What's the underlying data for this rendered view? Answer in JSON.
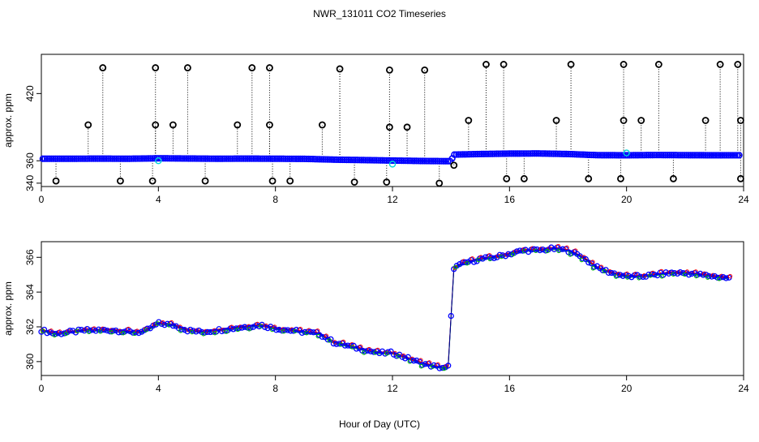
{
  "figure": {
    "title": "NWR_131011  CO2 Timeseries",
    "xlabel": "Hour of Day (UTC)"
  },
  "chart_data": [
    {
      "type": "scatter",
      "title": "",
      "xlabel": "",
      "ylabel": "approx. ppm",
      "xlim": [
        0,
        24
      ],
      "ylim": [
        337,
        455
      ],
      "xticks": [
        0,
        4,
        8,
        12,
        16,
        20,
        24
      ],
      "yticks": [
        340,
        360,
        420
      ],
      "colors": {
        "baseline": "#0000ff",
        "spike": "#000000",
        "flag": "#00d8d8",
        "line": "#000000"
      },
      "baseline": {
        "x": [
          0,
          1,
          2,
          3,
          4,
          5,
          6,
          7,
          8,
          9,
          10,
          11,
          12,
          13,
          14,
          14.1,
          15,
          16,
          17,
          18,
          19,
          20,
          21,
          22,
          23,
          23.8
        ],
        "y": [
          361.8,
          361.8,
          361.9,
          361.8,
          362.2,
          362.0,
          361.8,
          361.9,
          361.8,
          361.7,
          361.0,
          360.6,
          360.2,
          359.8,
          359.6,
          365.5,
          366.0,
          366.4,
          366.5,
          366.0,
          365.0,
          364.9,
          365.1,
          365.0,
          364.9,
          364.9
        ]
      },
      "spikes": [
        {
          "x": 0.5,
          "y": 342
        },
        {
          "x": 1.6,
          "y": 392
        },
        {
          "x": 2.1,
          "y": 443
        },
        {
          "x": 2.7,
          "y": 342
        },
        {
          "x": 3.8,
          "y": 342
        },
        {
          "x": 3.9,
          "y": 443
        },
        {
          "x": 3.9,
          "y": 392
        },
        {
          "x": 4.5,
          "y": 392
        },
        {
          "x": 5.0,
          "y": 443
        },
        {
          "x": 5.6,
          "y": 342
        },
        {
          "x": 6.7,
          "y": 392
        },
        {
          "x": 7.2,
          "y": 443
        },
        {
          "x": 7.8,
          "y": 443
        },
        {
          "x": 7.8,
          "y": 392
        },
        {
          "x": 7.9,
          "y": 342
        },
        {
          "x": 8.5,
          "y": 342
        },
        {
          "x": 9.6,
          "y": 392
        },
        {
          "x": 10.2,
          "y": 442
        },
        {
          "x": 10.7,
          "y": 341
        },
        {
          "x": 11.8,
          "y": 341
        },
        {
          "x": 11.9,
          "y": 390
        },
        {
          "x": 11.9,
          "y": 441
        },
        {
          "x": 12.5,
          "y": 390
        },
        {
          "x": 13.1,
          "y": 441
        },
        {
          "x": 13.6,
          "y": 340
        },
        {
          "x": 14.1,
          "y": 356
        },
        {
          "x": 14.6,
          "y": 396
        },
        {
          "x": 15.2,
          "y": 446
        },
        {
          "x": 15.8,
          "y": 446
        },
        {
          "x": 15.9,
          "y": 344
        },
        {
          "x": 16.5,
          "y": 344
        },
        {
          "x": 17.6,
          "y": 396
        },
        {
          "x": 18.1,
          "y": 446
        },
        {
          "x": 18.7,
          "y": 344
        },
        {
          "x": 19.8,
          "y": 344
        },
        {
          "x": 19.9,
          "y": 396
        },
        {
          "x": 19.9,
          "y": 446
        },
        {
          "x": 20.5,
          "y": 396
        },
        {
          "x": 21.1,
          "y": 446
        },
        {
          "x": 21.6,
          "y": 344
        },
        {
          "x": 22.7,
          "y": 396
        },
        {
          "x": 23.2,
          "y": 446
        },
        {
          "x": 23.8,
          "y": 446
        },
        {
          "x": 23.9,
          "y": 396
        },
        {
          "x": 23.9,
          "y": 344
        }
      ],
      "flags": [
        {
          "x": 4.0,
          "y": 360
        },
        {
          "x": 12.0,
          "y": 357
        },
        {
          "x": 20.0,
          "y": 367
        }
      ]
    },
    {
      "type": "scatter",
      "title": "",
      "xlabel": "",
      "ylabel": "approx. ppm",
      "xlim": [
        0,
        24
      ],
      "ylim": [
        359.2,
        366.9
      ],
      "xticks": [
        0,
        4,
        8,
        12,
        16,
        20,
        24
      ],
      "yticks": [
        360,
        362,
        364,
        366
      ],
      "series_names": [
        "red",
        "green",
        "blue",
        "navy"
      ],
      "colors": [
        "#ff0000",
        "#00c000",
        "#0000ff",
        "#000080"
      ],
      "x": [
        0,
        0.5,
        1,
        1.5,
        2,
        2.5,
        3,
        3.5,
        4,
        4.5,
        5,
        5.5,
        6,
        6.5,
        7,
        7.5,
        8,
        8.5,
        9,
        9.5,
        10,
        10.5,
        11,
        11.5,
        12,
        12.5,
        13,
        13.5,
        13.9,
        14.1,
        14.5,
        15,
        15.5,
        16,
        16.5,
        17,
        17.5,
        18,
        18.5,
        19,
        19.5,
        20,
        20.5,
        21,
        21.5,
        22,
        22.5,
        23,
        23.5
      ],
      "y": [
        361.8,
        361.6,
        361.7,
        361.8,
        361.8,
        361.8,
        361.7,
        361.7,
        362.2,
        362.1,
        361.8,
        361.7,
        361.8,
        361.9,
        362.0,
        362.1,
        361.9,
        361.8,
        361.7,
        361.6,
        361.1,
        360.9,
        360.7,
        360.5,
        360.5,
        360.2,
        359.9,
        359.7,
        359.6,
        365.4,
        365.7,
        365.9,
        366.0,
        366.2,
        366.4,
        366.4,
        366.5,
        366.4,
        366.0,
        365.4,
        365.1,
        364.9,
        364.9,
        365.0,
        365.1,
        365.1,
        365.0,
        364.9,
        364.8
      ]
    }
  ]
}
